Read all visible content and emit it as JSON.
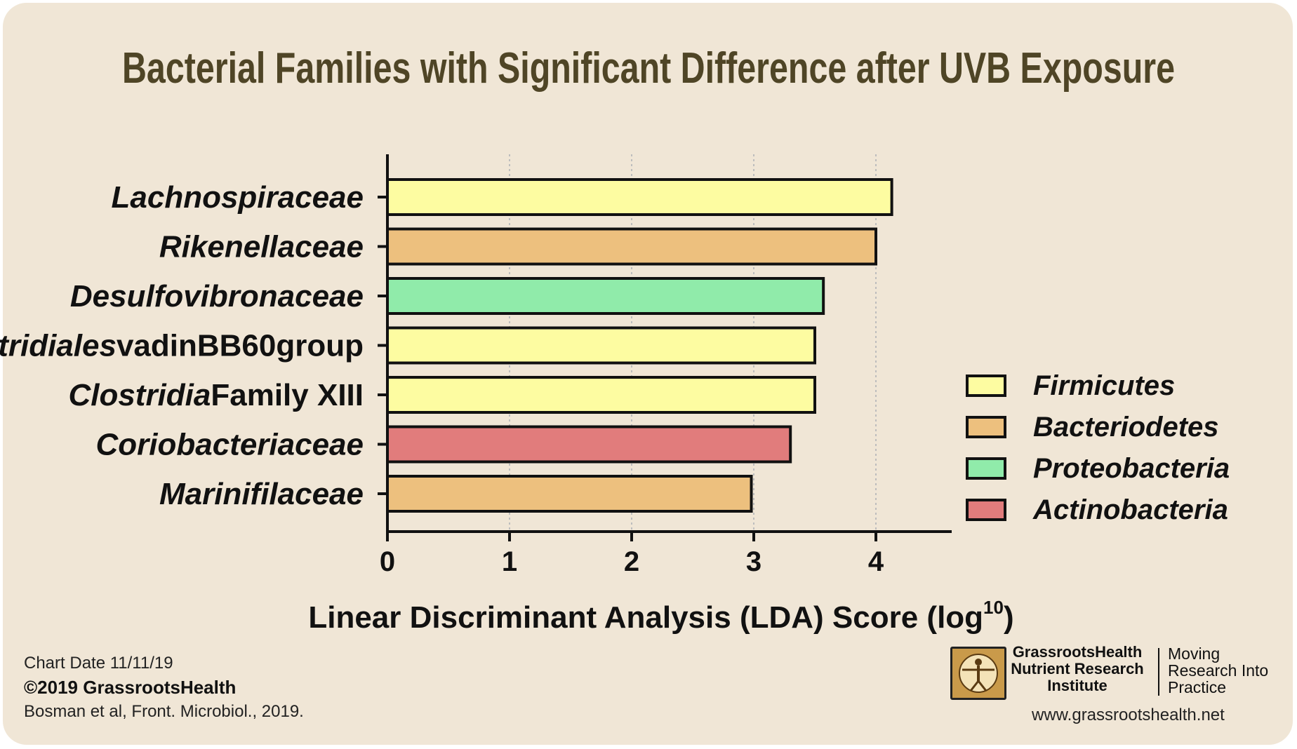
{
  "chart_data": {
    "type": "bar",
    "orientation": "horizontal",
    "title": "Bacterial Families with Significant Difference after UVB Exposure",
    "xlabel_main": "Linear Discriminant Analysis (LDA) Score (log",
    "xlabel_sup": "10",
    "xlabel_end": ")",
    "xlim": [
      0,
      4.6
    ],
    "xticks": [
      0,
      1,
      2,
      3,
      4
    ],
    "grid": "vertical dotted",
    "legend_position": "right",
    "categories": [
      {
        "italic": "Lachnospiraceae",
        "plain": ""
      },
      {
        "italic": "Rikenellaceae",
        "plain": ""
      },
      {
        "italic": "Desulfovibronaceae",
        "plain": ""
      },
      {
        "italic": "Clostridiales",
        "plain": "vadinBB60group"
      },
      {
        "italic": "Clostridia",
        "plain": "Family XIII"
      },
      {
        "italic": "Coriobacteriaceae",
        "plain": ""
      },
      {
        "italic": "Marinifilaceae",
        "plain": ""
      }
    ],
    "values": [
      4.13,
      4.0,
      3.57,
      3.5,
      3.5,
      3.3,
      2.98
    ],
    "bar_groups": [
      "Firmicutes",
      "Bacteriodetes",
      "Proteobacteria",
      "Firmicutes",
      "Firmicutes",
      "Actinobacteria",
      "Bacteriodetes"
    ],
    "legend": [
      {
        "name": "Firmicutes",
        "color": "#fdfca1"
      },
      {
        "name": "Bacteriodetes",
        "color": "#edc07e"
      },
      {
        "name": "Proteobacteria",
        "color": "#90ebaa"
      },
      {
        "name": "Actinobacteria",
        "color": "#e17c7c"
      }
    ]
  },
  "footer": {
    "chart_date": "Chart Date 11/11/19",
    "copyright": "©2019 GrassrootsHealth",
    "citation": "Bosman et al, Front. Microbiol., 2019.",
    "org_name": "GrassrootsHealth Nutrient Research Institute",
    "tagline": "Moving Research Into Practice",
    "website": "www.grassrootshealth.net"
  },
  "colors": {
    "background": "#f0e6d6",
    "title": "#4f4526"
  }
}
